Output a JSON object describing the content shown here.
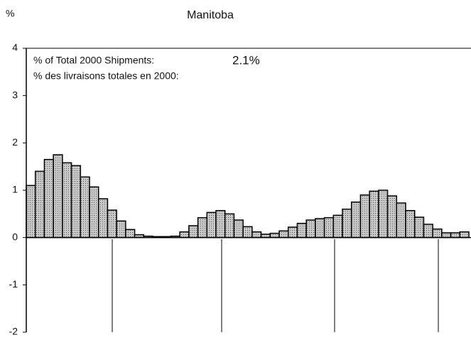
{
  "chart_data": {
    "type": "bar",
    "title": "Manitoba",
    "y_label": "%",
    "annotations": [
      "% of Total 2000 Shipments:",
      "2.1%",
      "% des livraisons totales en 2000:"
    ],
    "categories": [
      null,
      null,
      null,
      null,
      null,
      null,
      null,
      null,
      null,
      null,
      null,
      null,
      null,
      null,
      null,
      null,
      null,
      null,
      null,
      null,
      null,
      null,
      null,
      null,
      null,
      null,
      null,
      null,
      null,
      null,
      null,
      null,
      null,
      null,
      null,
      null,
      null,
      null,
      null,
      null,
      null,
      null,
      null,
      null,
      null,
      null,
      null,
      null,
      null
    ],
    "values": [
      1.1,
      1.4,
      1.65,
      1.75,
      1.58,
      1.52,
      1.28,
      1.07,
      0.82,
      0.58,
      0.35,
      0.17,
      0.06,
      0.03,
      0.02,
      0.02,
      0.03,
      0.12,
      0.25,
      0.42,
      0.53,
      0.57,
      0.5,
      0.37,
      0.23,
      0.12,
      0.07,
      0.09,
      0.14,
      0.22,
      0.3,
      0.37,
      0.4,
      0.42,
      0.47,
      0.6,
      0.75,
      0.9,
      0.98,
      1.0,
      0.88,
      0.73,
      0.57,
      0.43,
      0.28,
      0.18,
      0.1,
      0.1,
      0.12
    ],
    "color": "#b0b0b0",
    "ylim": [
      -2,
      4
    ],
    "yticks": [
      -2,
      -1,
      0,
      1,
      2,
      3,
      4
    ]
  }
}
